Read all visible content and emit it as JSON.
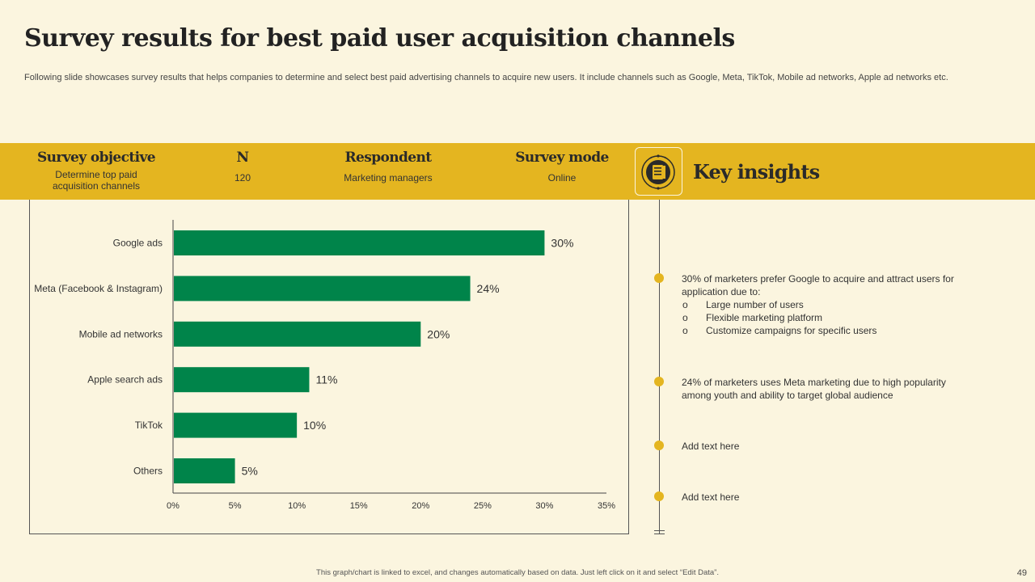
{
  "title": "Survey results for best paid user acquisition channels",
  "subtitle": "Following slide showcases survey results that helps companies to determine and select best paid advertising channels to acquire new users. It include channels such as Google, Meta, TikTok, Mobile ad networks, Apple ad networks etc.",
  "survey": {
    "objective_label": "Survey objective",
    "objective_value": "Determine top paid acquisition channels",
    "n_label": "N",
    "n_value": "120",
    "respondent_label": "Respondent",
    "respondent_value": "Marketing managers",
    "mode_label": "Survey mode",
    "mode_value": "Online"
  },
  "key_insights": {
    "title": "Key insights",
    "icon": "notebook-icon",
    "items": [
      {
        "text": "30% of marketers prefer Google to acquire and attract users for application due to:",
        "bullets": [
          "Large number of users",
          "Flexible marketing platform",
          "Customize campaigns for specific users"
        ]
      },
      {
        "text": "24% of marketers uses Meta marketing due to high popularity among youth and ability to target global audience",
        "bullets": []
      },
      {
        "text": "Add text here",
        "bullets": []
      },
      {
        "text": "Add text here",
        "bullets": []
      }
    ]
  },
  "chart_data": {
    "type": "bar",
    "orientation": "horizontal",
    "categories": [
      "Google ads",
      "Meta (Facebook & Instagram)",
      "Mobile ad networks",
      "Apple search ads",
      "TikTok",
      "Others"
    ],
    "values": [
      30,
      24,
      20,
      11,
      10,
      5
    ],
    "value_labels": [
      "30%",
      "24%",
      "20%",
      "11%",
      "10%",
      "5%"
    ],
    "xlim": [
      0,
      35
    ],
    "x_ticks": [
      0,
      5,
      10,
      15,
      20,
      25,
      30,
      35
    ],
    "x_tick_labels": [
      "0%",
      "5%",
      "10%",
      "15%",
      "20%",
      "25%",
      "30%",
      "35%"
    ],
    "bar_color": "#00844a",
    "grid": false,
    "legend": "none"
  },
  "footer": "This graph/chart is linked to excel, and changes automatically based on data. Just left click on it and select “Edit Data”.",
  "page_number": "49"
}
